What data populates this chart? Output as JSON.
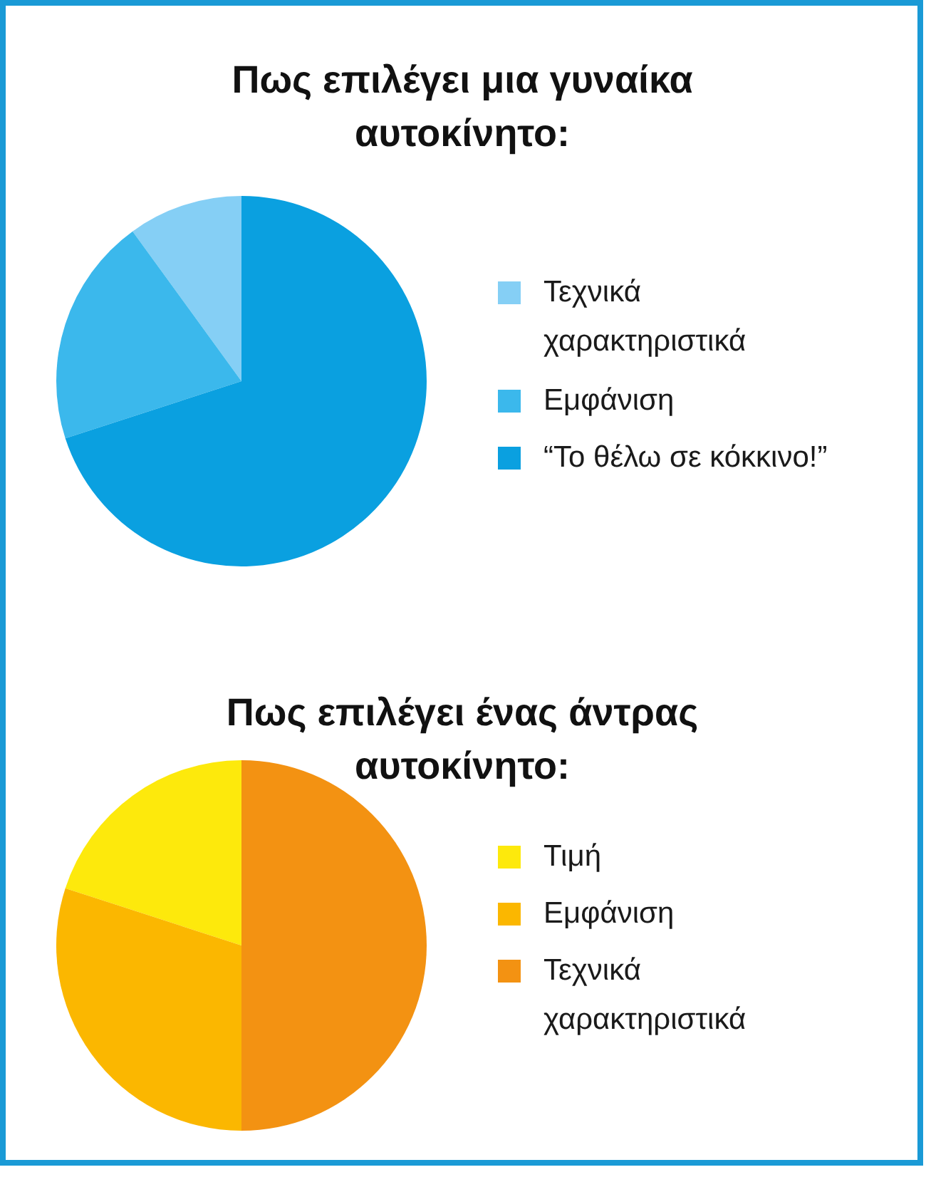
{
  "chart_data": [
    {
      "type": "pie",
      "title": "Πως επιλέγει μια γυναίκα αυτοκίνητο:",
      "categories": [
        "Τεχνικά χαρακτηριστικά",
        "Εμφάνιση",
        "“Το θέλω σε κόκκινο!”"
      ],
      "values": [
        10,
        20,
        70
      ],
      "colors": [
        "#85cff5",
        "#3bb8ec",
        "#0aa0e0"
      ],
      "legend": "right"
    },
    {
      "type": "pie",
      "title": "Πως επιλέγει ένας άντρας αυτοκίνητο:",
      "categories": [
        "Τιμή",
        "Εμφάνιση",
        "Τεχνικά χαρακτηριστικά"
      ],
      "values": [
        20,
        30,
        50
      ],
      "colors": [
        "#fde90c",
        "#fbb700",
        "#f39212"
      ],
      "legend": "right"
    }
  ]
}
